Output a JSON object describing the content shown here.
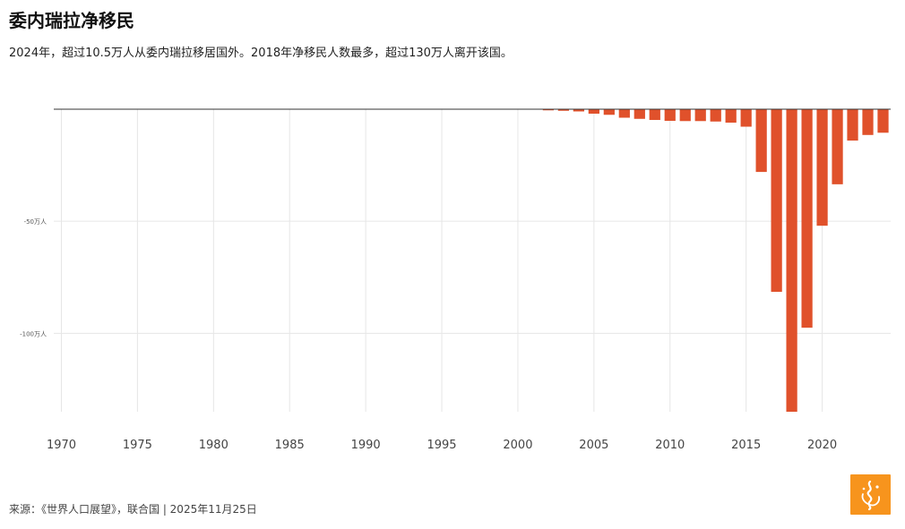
{
  "header": {
    "title": "委内瑞拉净移民",
    "subtitle": "2024年，超过10.5万人从委内瑞拉移居国外。2018年净移民人数最多，超过130万人离开该国。"
  },
  "footer": {
    "source": "来源：《世界人口展望》，联合国 | 2025年11月25日"
  },
  "colors": {
    "bar": "#e0512b",
    "grid": "#e6e6e6",
    "zero_line": "#333333",
    "logo_bg": "#f7941d"
  },
  "logo": {
    "icon": "al-jazeera-logo-icon"
  },
  "chart_data": {
    "type": "bar",
    "x": [
      2002,
      2003,
      2004,
      2005,
      2006,
      2007,
      2008,
      2009,
      2010,
      2011,
      2012,
      2013,
      2014,
      2015,
      2016,
      2017,
      2018,
      2019,
      2020,
      2021,
      2022,
      2023,
      2024
    ],
    "values": [
      -5000,
      -7000,
      -10000,
      -20000,
      -25000,
      -38000,
      -43000,
      -48000,
      -52000,
      -53000,
      -53000,
      -55000,
      -60000,
      -78000,
      -280000,
      -815000,
      -1350000,
      -975000,
      -520000,
      -335000,
      -140000,
      -115000,
      -105000
    ],
    "x_ticks": [
      "1970",
      "1975",
      "1980",
      "1985",
      "1990",
      "1995",
      "2000",
      "2005",
      "2010",
      "2015",
      "2020"
    ],
    "y_ticks": [
      {
        "value": -500000,
        "label": "-50万人"
      },
      {
        "value": -1000000,
        "label": "-100万人"
      }
    ],
    "xlim": [
      1969.5,
      2024.5
    ],
    "ylim": [
      -1350000,
      0
    ],
    "grid": true,
    "legend": "none"
  }
}
